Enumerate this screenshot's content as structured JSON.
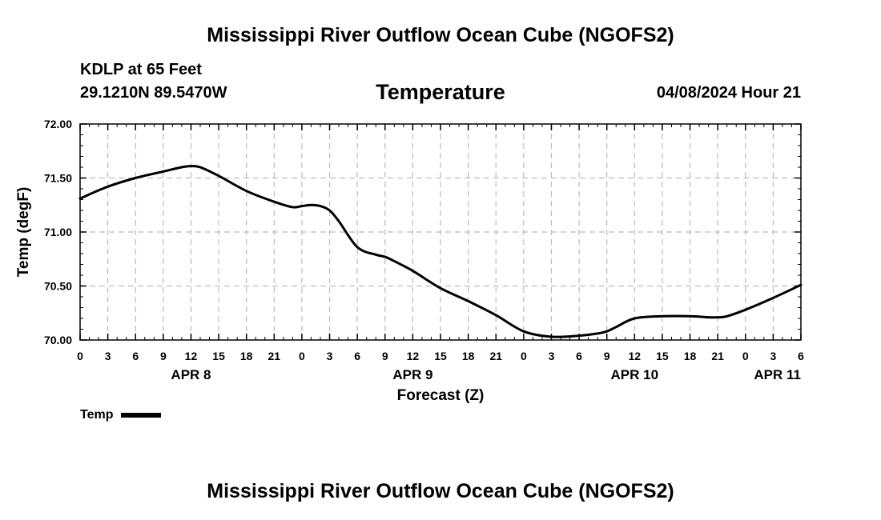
{
  "header": {
    "title": "Mississippi River Outflow Ocean Cube (NGOFS2)",
    "station": "KDLP at 65 Feet",
    "coords": "29.1210N  89.5470W",
    "variable": "Temperature",
    "datetime": "04/08/2024 Hour 21"
  },
  "footer": {
    "title": "Mississippi River Outflow Ocean Cube (NGOFS2)"
  },
  "legend": {
    "label": "Temp"
  },
  "chart_data": {
    "type": "line",
    "title": "Temperature",
    "xlabel": "Forecast (Z)",
    "ylabel": "Temp (degF)",
    "ylim": [
      70.0,
      72.0
    ],
    "xlim": [
      0,
      78
    ],
    "yticks": [
      "70.00",
      "70.50",
      "71.00",
      "71.50",
      "72.00"
    ],
    "xticks": [
      {
        "hour": 0,
        "label": "0"
      },
      {
        "hour": 3,
        "label": "3"
      },
      {
        "hour": 6,
        "label": "6"
      },
      {
        "hour": 9,
        "label": "9"
      },
      {
        "hour": 12,
        "label": "12"
      },
      {
        "hour": 15,
        "label": "15"
      },
      {
        "hour": 18,
        "label": "18"
      },
      {
        "hour": 21,
        "label": "21"
      },
      {
        "hour": 24,
        "label": "0"
      },
      {
        "hour": 27,
        "label": "3"
      },
      {
        "hour": 30,
        "label": "6"
      },
      {
        "hour": 33,
        "label": "9"
      },
      {
        "hour": 36,
        "label": "12"
      },
      {
        "hour": 39,
        "label": "15"
      },
      {
        "hour": 42,
        "label": "18"
      },
      {
        "hour": 45,
        "label": "21"
      },
      {
        "hour": 48,
        "label": "0"
      },
      {
        "hour": 51,
        "label": "3"
      },
      {
        "hour": 54,
        "label": "6"
      },
      {
        "hour": 57,
        "label": "9"
      },
      {
        "hour": 60,
        "label": "12"
      },
      {
        "hour": 63,
        "label": "15"
      },
      {
        "hour": 66,
        "label": "18"
      },
      {
        "hour": 69,
        "label": "21"
      },
      {
        "hour": 72,
        "label": "0"
      },
      {
        "hour": 75,
        "label": "3"
      },
      {
        "hour": 78,
        "label": "6"
      }
    ],
    "day_labels": [
      {
        "hour": 12,
        "label": "APR 8"
      },
      {
        "hour": 36,
        "label": "APR 9"
      },
      {
        "hour": 60,
        "label": "APR 10"
      },
      {
        "hour": 78,
        "label": "APR 11"
      }
    ],
    "grid": true,
    "series": [
      {
        "name": "Temp",
        "color": "#000000",
        "x": [
          0,
          3,
          6,
          9,
          11,
          12,
          13,
          15,
          18,
          21,
          23,
          24,
          25,
          26,
          27,
          28,
          30,
          32,
          33,
          34,
          36,
          39,
          42,
          45,
          48,
          51,
          54,
          56,
          57,
          58,
          60,
          63,
          66,
          68,
          69,
          70,
          72,
          75,
          78
        ],
        "y": [
          71.31,
          71.42,
          71.5,
          71.56,
          71.6,
          71.61,
          71.6,
          71.52,
          71.38,
          71.28,
          71.23,
          71.24,
          71.25,
          71.24,
          71.2,
          71.1,
          70.86,
          70.79,
          70.77,
          70.73,
          70.64,
          70.48,
          70.36,
          70.23,
          70.08,
          70.03,
          70.04,
          70.06,
          70.08,
          70.12,
          70.2,
          70.22,
          70.22,
          70.21,
          70.21,
          70.22,
          70.28,
          70.39,
          70.51
        ]
      }
    ]
  }
}
